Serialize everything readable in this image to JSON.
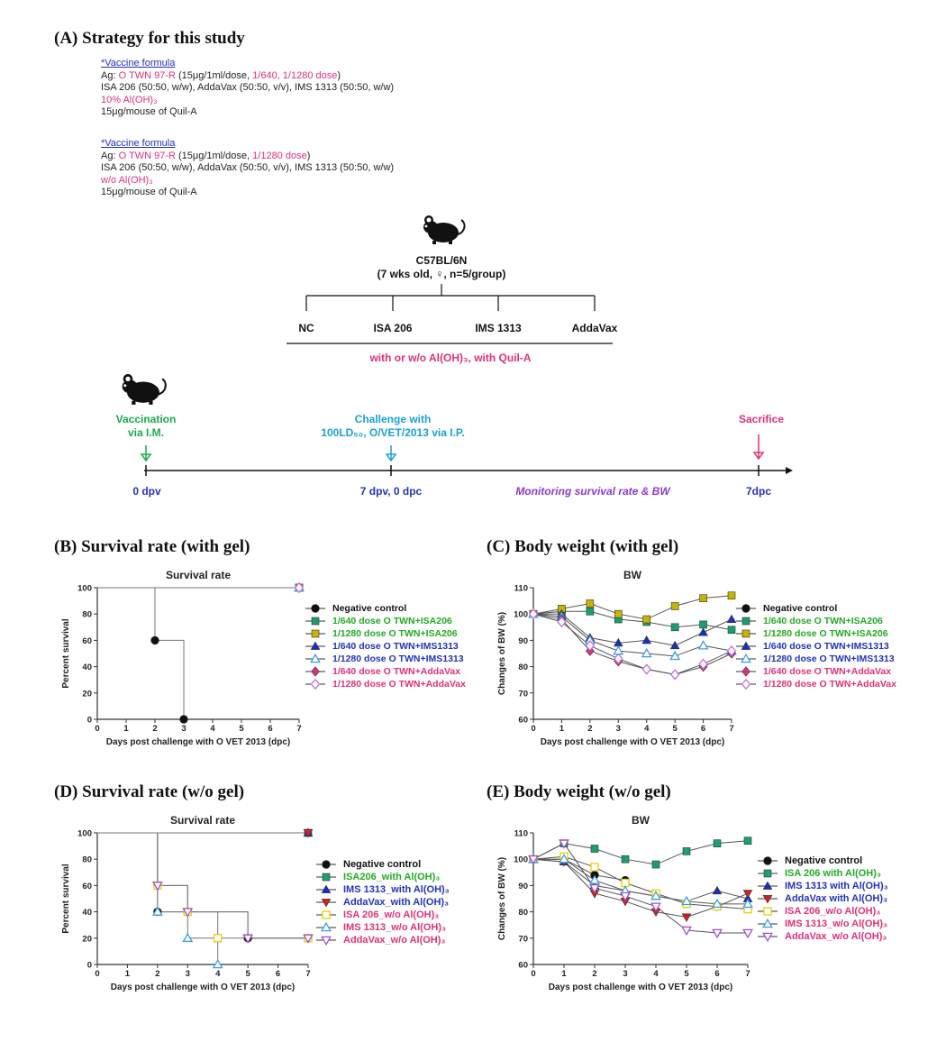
{
  "sections": {
    "a": "(A)  Strategy for this study",
    "b": "(B)  Survival rate (with gel)",
    "c": "(C)  Body weight (with gel)",
    "d": "(D)  Survival rate (w/o gel)",
    "e": "(E)  Body weight (w/o gel)"
  },
  "formula1": {
    "title": "*Vaccine formula",
    "ag_prefix": "Ag: ",
    "ag_name": "O TWN 97-R",
    "ag_dose": " (15μg/1ml/dose, ",
    "ag_dilutions": "1/640, 1/1280 dose",
    "ag_close": ")",
    "adjuvants": "ISA 206 (50:50, w/w), AddaVax (50:50, v/v), IMS 1313 (50:50, w/w)",
    "gel": "10% Al(OH)₃",
    "quil": "15μg/mouse of Quil-A"
  },
  "formula2": {
    "title": "*Vaccine formula",
    "ag_prefix": "Ag: ",
    "ag_name": "O TWN 97-R",
    "ag_dose": " (15μg/1ml/dose, ",
    "ag_dilutions": "1/1280 dose",
    "ag_close": ")",
    "adjuvants": "ISA 206 (50:50, w/w), AddaVax (50:50, v/v), IMS 1313 (50:50, w/w)",
    "gel": "w/o Al(OH)₃",
    "quil": "15μg/mouse of Quil-A"
  },
  "strategy": {
    "strain": "C57BL/6N",
    "strain_detail": "(7 wks old, ♀, n=5/group)",
    "groups": [
      "NC",
      "ISA 206",
      "IMS 1313",
      "AddaVax"
    ],
    "group_note": "with or w/o Al(OH)₃, with Quil-A",
    "vaccination": [
      "Vaccination",
      "via I.M."
    ],
    "challenge": [
      "Challenge with",
      "100LD₅₀, O/VET/2013 via I.P."
    ],
    "sacrifice": "Sacrifice",
    "timeline_labels": [
      "0 dpv",
      "7 dpv, 0 dpc",
      "Monitoring survival rate & BW",
      "7dpc"
    ],
    "colors": {
      "green": "#1aa84a",
      "cyan": "#1aa0d8",
      "pink": "#e0307a",
      "blue": "#2233bb",
      "purple": "#8a3ad0"
    }
  },
  "chart_data": [
    {
      "type": "line",
      "panel": "B",
      "title": "Survival rate",
      "xlabel": "Days post challenge with O VET 2013 (dpc)",
      "ylabel": "Percent survival",
      "xlim": [
        0,
        7
      ],
      "ylim": [
        0,
        100
      ],
      "xticks": [
        0,
        1,
        2,
        3,
        4,
        5,
        6,
        7
      ],
      "yticks": [
        0,
        20,
        40,
        60,
        80,
        100
      ],
      "step": true,
      "series": [
        {
          "name": "Negative control",
          "marker": "circle",
          "color": "#111111",
          "labelColor": "#111111",
          "x": [
            0,
            2,
            3
          ],
          "y": [
            100,
            60,
            0
          ]
        },
        {
          "name": "1/640 dose O TWN+ISA206",
          "marker": "square",
          "color": "#1aa070",
          "labelColor": "#22aa22",
          "x": [
            0,
            7
          ],
          "y": [
            100,
            100
          ]
        },
        {
          "name": "1/1280 dose O TWN+ISA206",
          "marker": "square",
          "color": "#c8b400",
          "labelColor": "#22aa22",
          "x": [
            0,
            7
          ],
          "y": [
            100,
            100
          ]
        },
        {
          "name": "1/640 dose O TWN+IMS1313",
          "marker": "triangle",
          "color": "#1a2fc0",
          "labelColor": "#2233bb",
          "x": [
            0,
            7
          ],
          "y": [
            100,
            100
          ]
        },
        {
          "name": "1/1280 dose O TWN+IMS1313",
          "marker": "triangle-open",
          "color": "#3aa0e0",
          "labelColor": "#2233bb",
          "x": [
            0,
            7
          ],
          "y": [
            100,
            100
          ]
        },
        {
          "name": "1/640 dose O TWN+AddaVax",
          "marker": "diamond",
          "color": "#e0307a",
          "labelColor": "#e0307a",
          "x": [
            0,
            7
          ],
          "y": [
            100,
            100
          ]
        },
        {
          "name": "1/1280 dose O TWN+AddaVax",
          "marker": "diamond-open",
          "color": "#c070e0",
          "labelColor": "#e0307a",
          "x": [
            0,
            7
          ],
          "y": [
            100,
            100
          ]
        }
      ]
    },
    {
      "type": "line",
      "panel": "C",
      "title": "BW",
      "xlabel": "Days post challenge with O VET 2013 (dpc)",
      "ylabel": "Changes of BW (%)",
      "xlim": [
        0,
        7
      ],
      "ylim": [
        60,
        110
      ],
      "xticks": [
        0,
        1,
        2,
        3,
        4,
        5,
        6,
        7
      ],
      "yticks": [
        60,
        70,
        80,
        90,
        100,
        110
      ],
      "step": false,
      "series": [
        {
          "name": "Negative control",
          "marker": "circle",
          "color": "#111111",
          "labelColor": "#111111",
          "x": [
            0,
            1
          ],
          "y": [
            100,
            101
          ]
        },
        {
          "name": "1/640 dose O TWN+ISA206",
          "marker": "square",
          "color": "#1aa070",
          "labelColor": "#22aa22",
          "x": [
            0,
            1,
            2,
            3,
            4,
            5,
            6,
            7
          ],
          "y": [
            100,
            101,
            101,
            98,
            97,
            95,
            96,
            94
          ]
        },
        {
          "name": "1/1280 dose O TWN+ISA206",
          "marker": "square",
          "color": "#c8b400",
          "labelColor": "#22aa22",
          "x": [
            0,
            1,
            2,
            3,
            4,
            5,
            6,
            7
          ],
          "y": [
            100,
            102,
            104,
            100,
            98,
            103,
            106,
            107
          ]
        },
        {
          "name": "1/640 dose O TWN+IMS1313",
          "marker": "triangle",
          "color": "#1a2fc0",
          "labelColor": "#2233bb",
          "x": [
            0,
            1,
            2,
            3,
            4,
            5,
            6,
            7
          ],
          "y": [
            100,
            100,
            91,
            89,
            90,
            88,
            93,
            98
          ]
        },
        {
          "name": "1/1280 dose O TWN+IMS1313",
          "marker": "triangle-open",
          "color": "#3aa0e0",
          "labelColor": "#2233bb",
          "x": [
            0,
            1,
            2,
            3,
            4,
            5,
            6,
            7
          ],
          "y": [
            100,
            99,
            90,
            86,
            85,
            84,
            88,
            86
          ]
        },
        {
          "name": "1/640 dose O TWN+AddaVax",
          "marker": "diamond",
          "color": "#e0307a",
          "labelColor": "#e0307a",
          "x": [
            0,
            1,
            2,
            3,
            4,
            5,
            6,
            7
          ],
          "y": [
            100,
            98,
            86,
            82,
            79,
            77,
            80,
            85
          ]
        },
        {
          "name": "1/1280 dose O TWN+AddaVax",
          "marker": "diamond-open",
          "color": "#c070e0",
          "labelColor": "#e0307a",
          "x": [
            0,
            1,
            2,
            3,
            4,
            5,
            6,
            7
          ],
          "y": [
            100,
            97,
            88,
            83,
            79,
            77,
            81,
            86
          ]
        }
      ]
    },
    {
      "type": "line",
      "panel": "D",
      "title": "Survival rate",
      "xlabel": "Days post challenge with O VET 2013 (dpc)",
      "ylabel": "Percent survival",
      "xlim": [
        0,
        7
      ],
      "ylim": [
        0,
        100
      ],
      "xticks": [
        0,
        1,
        2,
        3,
        4,
        5,
        6,
        7
      ],
      "yticks": [
        0,
        20,
        40,
        60,
        80,
        100
      ],
      "step": true,
      "series": [
        {
          "name": "Negative control",
          "marker": "circle",
          "color": "#111111",
          "labelColor": "#111111",
          "x": [
            0,
            2,
            3,
            5,
            7
          ],
          "y": [
            100,
            40,
            40,
            20,
            20
          ]
        },
        {
          "name": "ISA206_with Al(OH)₃",
          "marker": "square",
          "color": "#1aa070",
          "labelColor": "#22aa22",
          "x": [
            0,
            7
          ],
          "y": [
            100,
            100
          ]
        },
        {
          "name": "IMS 1313_with Al(OH)₃",
          "marker": "triangle",
          "color": "#1a2fc0",
          "labelColor": "#2233bb",
          "x": [
            0,
            7
          ],
          "y": [
            100,
            100
          ]
        },
        {
          "name": "AddaVax_with Al(OH)₃",
          "marker": "triangle-down",
          "color": "#d02020",
          "labelColor": "#2233bb",
          "x": [
            0,
            7
          ],
          "y": [
            100,
            100
          ]
        },
        {
          "name": "ISA 206_w/o Al(OH)₃",
          "marker": "square-open",
          "color": "#e8d000",
          "labelColor": "#e0307a",
          "x": [
            0,
            2,
            3,
            4,
            7
          ],
          "y": [
            100,
            60,
            40,
            20,
            20
          ]
        },
        {
          "name": "IMS 1313_w/o Al(OH)₃",
          "marker": "triangle-open",
          "color": "#3aa0e0",
          "labelColor": "#e0307a",
          "x": [
            0,
            2,
            3,
            4
          ],
          "y": [
            100,
            40,
            20,
            0
          ]
        },
        {
          "name": "AddaVax_w/o Al(OH)₃",
          "marker": "triangle-down-open",
          "color": "#a050d0",
          "labelColor": "#e0307a",
          "x": [
            0,
            2,
            3,
            5,
            7
          ],
          "y": [
            100,
            60,
            40,
            20,
            20
          ]
        }
      ]
    },
    {
      "type": "line",
      "panel": "E",
      "title": "BW",
      "xlabel": "Days post challenge with O VET 2013 (dpc)",
      "ylabel": "Changes of BW (%)",
      "xlim": [
        0,
        7
      ],
      "ylim": [
        60,
        110
      ],
      "xticks": [
        0,
        1,
        2,
        3,
        4,
        5,
        6,
        7
      ],
      "yticks": [
        60,
        70,
        80,
        90,
        100,
        110
      ],
      "step": false,
      "series": [
        {
          "name": "Negative control",
          "marker": "circle",
          "color": "#111111",
          "labelColor": "#111111",
          "x": [
            0,
            1,
            2,
            3
          ],
          "y": [
            100,
            100,
            94,
            92
          ]
        },
        {
          "name": "ISA 206 with Al(OH)₃",
          "marker": "square",
          "color": "#1aa070",
          "labelColor": "#22aa22",
          "x": [
            0,
            1,
            2,
            3,
            4,
            5,
            6,
            7
          ],
          "y": [
            100,
            106,
            104,
            100,
            98,
            103,
            106,
            107
          ]
        },
        {
          "name": "IMS 1313 with Al(OH)₃",
          "marker": "triangle",
          "color": "#1a2fc0",
          "labelColor": "#2233bb",
          "x": [
            0,
            1,
            2,
            3,
            4,
            5,
            6,
            7
          ],
          "y": [
            100,
            99,
            90,
            88,
            86,
            84,
            88,
            85
          ]
        },
        {
          "name": "AddaVax with Al(OH)₃",
          "marker": "triangle-down",
          "color": "#d02020",
          "labelColor": "#2233bb",
          "x": [
            0,
            1,
            2,
            3,
            4,
            5,
            6,
            7
          ],
          "y": [
            100,
            99,
            87,
            84,
            80,
            78,
            82,
            87
          ]
        },
        {
          "name": "ISA 206_w/o Al(OH)₃",
          "marker": "square-open",
          "color": "#e8d000",
          "labelColor": "#e0307a",
          "x": [
            0,
            1,
            2,
            3,
            4,
            5,
            6,
            7
          ],
          "y": [
            100,
            101,
            97,
            91,
            87,
            83,
            82,
            81
          ]
        },
        {
          "name": "IMS 1313_w/o Al(OH)₃",
          "marker": "triangle-open",
          "color": "#3aa0e0",
          "labelColor": "#e0307a",
          "x": [
            0,
            1,
            2,
            3,
            4,
            5,
            6,
            7
          ],
          "y": [
            100,
            100,
            92,
            88,
            86,
            84,
            83,
            83
          ]
        },
        {
          "name": "AddaVax_w/o Al(OH)₃",
          "marker": "triangle-down-open",
          "color": "#a050d0",
          "labelColor": "#e0307a",
          "x": [
            0,
            1,
            2,
            3,
            4,
            5,
            6,
            7
          ],
          "y": [
            100,
            106,
            89,
            86,
            82,
            73,
            72,
            72
          ]
        }
      ]
    }
  ]
}
